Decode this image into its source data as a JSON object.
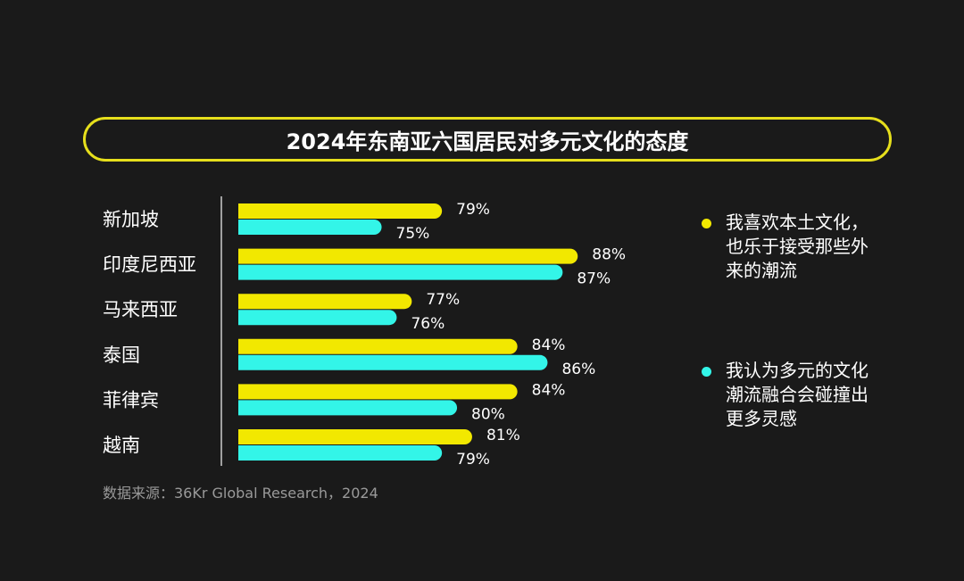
{
  "chart_data": {
    "type": "bar",
    "orientation": "horizontal",
    "title": "2024年东南亚六国居民对多元文化的态度",
    "categories": [
      "新加坡",
      "印度尼西亚",
      "马来西亚",
      "泰国",
      "菲律宾",
      "越南"
    ],
    "series": [
      {
        "name": "我喜欢本土文化，也乐于接受那些外来的潮流",
        "color": "#f2e800",
        "values": [
          79,
          88,
          77,
          84,
          84,
          81
        ]
      },
      {
        "name": "我认为多元的文化潮流融合会碰撞出更多灵感",
        "color": "#33f5e8",
        "values": [
          75,
          87,
          76,
          86,
          80,
          79
        ]
      }
    ],
    "value_suffix": "%",
    "xlim": [
      65.5,
      90
    ],
    "grid": false,
    "legend_position": "right"
  },
  "source": "数据来源：36Kr Global Research，2024",
  "colors": {
    "background": "#1a1a1a",
    "title_border": "#e6df1c"
  }
}
